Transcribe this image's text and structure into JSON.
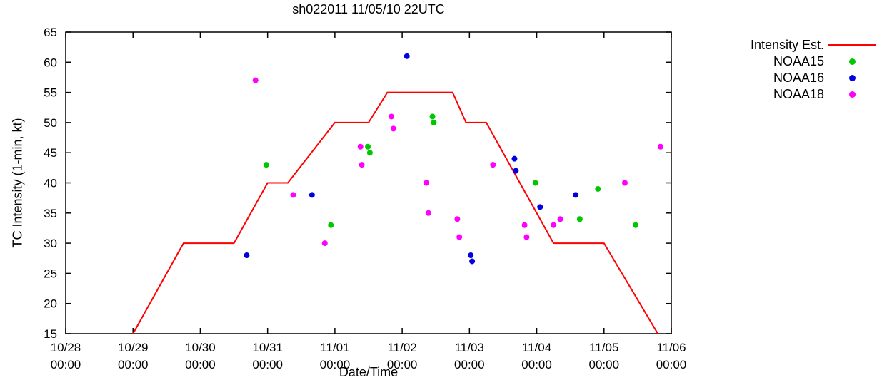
{
  "chart_data": {
    "type": "line",
    "title": "sh022011 11/05/10 22UTC",
    "xlabel": "Date/Time",
    "ylabel": "TC Intensity (1-min, kt)",
    "x_unit": "days since 10/28 00:00",
    "xlim": [
      0,
      9
    ],
    "ylim": [
      15,
      65
    ],
    "grid": false,
    "legend_position": "outside-right-top",
    "y_ticks": [
      15,
      20,
      25,
      30,
      35,
      40,
      45,
      50,
      55,
      60,
      65
    ],
    "x_ticks": [
      {
        "pos": 0,
        "line1": "10/28",
        "line2": "00:00"
      },
      {
        "pos": 1,
        "line1": "10/29",
        "line2": "00:00"
      },
      {
        "pos": 2,
        "line1": "10/30",
        "line2": "00:00"
      },
      {
        "pos": 3,
        "line1": "10/31",
        "line2": "00:00"
      },
      {
        "pos": 4,
        "line1": "11/01",
        "line2": "00:00"
      },
      {
        "pos": 5,
        "line1": "11/02",
        "line2": "00:00"
      },
      {
        "pos": 6,
        "line1": "11/03",
        "line2": "00:00"
      },
      {
        "pos": 7,
        "line1": "11/04",
        "line2": "00:00"
      },
      {
        "pos": 8,
        "line1": "11/05",
        "line2": "00:00"
      },
      {
        "pos": 9,
        "line1": "11/06",
        "line2": "00:00"
      }
    ],
    "series": [
      {
        "name": "Intensity Est.",
        "type": "line",
        "color": "#ff0000",
        "points": [
          [
            1.0,
            15
          ],
          [
            1.75,
            30
          ],
          [
            2.5,
            30
          ],
          [
            3.0,
            40
          ],
          [
            3.3,
            40
          ],
          [
            4.0,
            50
          ],
          [
            4.5,
            50
          ],
          [
            4.78,
            55
          ],
          [
            5.75,
            55
          ],
          [
            5.95,
            50
          ],
          [
            6.25,
            50
          ],
          [
            7.25,
            30
          ],
          [
            8.0,
            30
          ],
          [
            8.8,
            15
          ]
        ]
      },
      {
        "name": "NOAA15",
        "type": "points",
        "color": "#00c800",
        "points": [
          [
            2.98,
            43
          ],
          [
            3.94,
            33
          ],
          [
            4.49,
            46
          ],
          [
            4.52,
            45
          ],
          [
            5.45,
            51
          ],
          [
            5.47,
            50
          ],
          [
            6.98,
            40
          ],
          [
            7.64,
            34
          ],
          [
            7.91,
            39
          ],
          [
            8.47,
            33
          ]
        ]
      },
      {
        "name": "NOAA16",
        "type": "points",
        "color": "#0000e0",
        "points": [
          [
            2.69,
            28
          ],
          [
            3.66,
            38
          ],
          [
            5.07,
            61
          ],
          [
            6.02,
            28
          ],
          [
            6.04,
            27
          ],
          [
            6.67,
            44
          ],
          [
            6.69,
            42
          ],
          [
            7.05,
            36
          ],
          [
            7.58,
            38
          ]
        ]
      },
      {
        "name": "NOAA18",
        "type": "points",
        "color": "#ff00ff",
        "points": [
          [
            2.82,
            57
          ],
          [
            3.38,
            38
          ],
          [
            3.85,
            30
          ],
          [
            4.38,
            46
          ],
          [
            4.4,
            43
          ],
          [
            4.84,
            51
          ],
          [
            4.87,
            49
          ],
          [
            5.36,
            40
          ],
          [
            5.39,
            35
          ],
          [
            5.82,
            34
          ],
          [
            5.85,
            31
          ],
          [
            6.35,
            43
          ],
          [
            6.82,
            33
          ],
          [
            6.85,
            31
          ],
          [
            7.25,
            33
          ],
          [
            7.35,
            34
          ],
          [
            8.31,
            40
          ],
          [
            8.84,
            46
          ]
        ]
      }
    ]
  }
}
